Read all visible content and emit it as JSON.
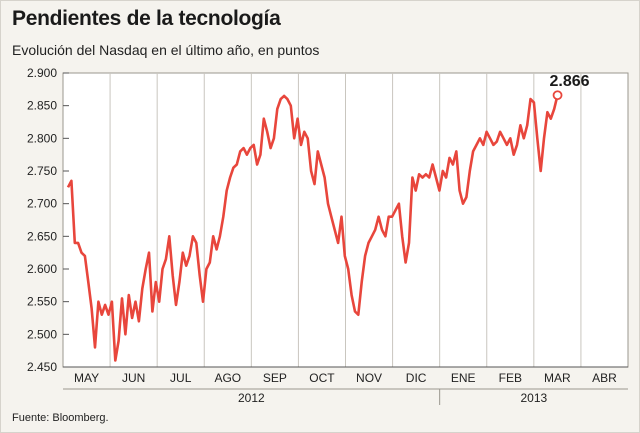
{
  "header": {
    "title": "Pendientes de la tecnología",
    "subtitle": "Evolución del Nasdaq en el último año, en puntos"
  },
  "footer": {
    "source": "Fuente: Bloomberg."
  },
  "colors": {
    "line": "#e8463c",
    "grid": "#c9c6bf",
    "panel": "#ffffff",
    "background": "#f5f3ee"
  },
  "chart_data": {
    "type": "line",
    "title": "Pendientes de la tecnología",
    "subtitle": "Evolución del Nasdaq en el último año, en puntos",
    "ylim": [
      2450,
      2900
    ],
    "yticks": [
      2450,
      2500,
      2550,
      2600,
      2650,
      2700,
      2750,
      2800,
      2850,
      2900
    ],
    "ytick_labels": [
      "2.450",
      "2.500",
      "2.550",
      "2.600",
      "2.650",
      "2.700",
      "2.750",
      "2.800",
      "2.850",
      "2.900"
    ],
    "months": [
      "MAY",
      "JUN",
      "JUL",
      "AGO",
      "SEP",
      "OCT",
      "NOV",
      "DIC",
      "ENE",
      "FEB",
      "MAR",
      "ABR"
    ],
    "years": [
      "2012",
      "2013"
    ],
    "grid": "vertical",
    "last_value_label": "2.866",
    "series": [
      {
        "values": [
          2725,
          2735,
          2640,
          2640,
          2625,
          2620,
          2580,
          2540,
          2480,
          2550,
          2530,
          2545,
          2530,
          2550,
          2460,
          2490,
          2555,
          2500,
          2560,
          2525,
          2550,
          2520,
          2570,
          2600,
          2625,
          2535,
          2580,
          2550,
          2600,
          2615,
          2650,
          2590,
          2545,
          2580,
          2625,
          2605,
          2620,
          2650,
          2640,
          2590,
          2550,
          2600,
          2610,
          2650,
          2630,
          2650,
          2680,
          2720,
          2740,
          2755,
          2760,
          2780,
          2785,
          2775,
          2785,
          2790,
          2760,
          2775,
          2830,
          2810,
          2785,
          2800,
          2845,
          2860,
          2865,
          2860,
          2850,
          2800,
          2830,
          2790,
          2810,
          2800,
          2750,
          2730,
          2780,
          2760,
          2740,
          2700,
          2680,
          2660,
          2640,
          2680,
          2620,
          2600,
          2560,
          2535,
          2530,
          2580,
          2620,
          2640,
          2650,
          2660,
          2680,
          2660,
          2650,
          2680,
          2680,
          2690,
          2700,
          2650,
          2610,
          2640,
          2740,
          2720,
          2745,
          2740,
          2745,
          2740,
          2760,
          2740,
          2720,
          2750,
          2740,
          2770,
          2760,
          2780,
          2720,
          2700,
          2710,
          2750,
          2780,
          2790,
          2800,
          2790,
          2810,
          2800,
          2790,
          2795,
          2810,
          2800,
          2790,
          2800,
          2775,
          2790,
          2820,
          2800,
          2820,
          2860,
          2855,
          2800,
          2750,
          2800,
          2840,
          2830,
          2845,
          2866
        ]
      }
    ]
  }
}
